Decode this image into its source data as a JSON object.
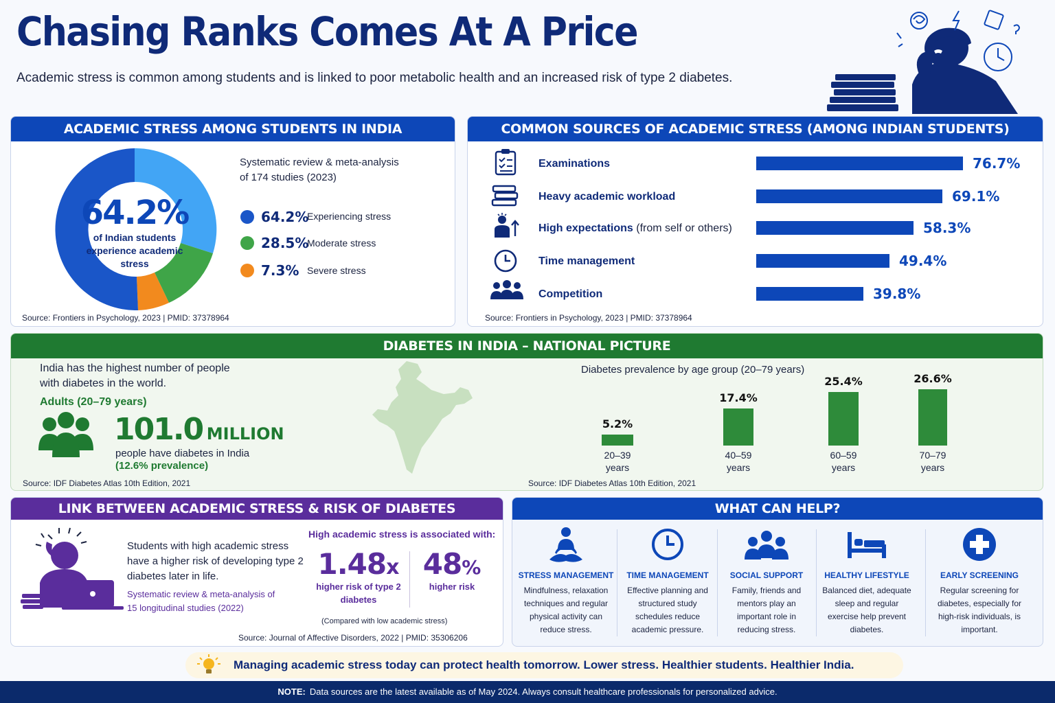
{
  "header": {
    "title": "Chasing Ranks Comes At A Price",
    "subtitle": "Academic stress is common among students and is linked to poor metabolic health and an increased risk of type 2 diabetes."
  },
  "stress_panel": {
    "heading": "ACADEMIC STRESS AMONG STUDENTS IN INDIA",
    "big_value": "64.2%",
    "big_caption_1": "of Indian students",
    "big_caption_2": "experience academic",
    "big_caption_3": "stress",
    "study_1": "Systematic review & meta-analysis",
    "study_2": "of 174 studies (2023)",
    "legend": [
      {
        "value": "64.2%",
        "label": "Experiencing stress",
        "color": "#1a56c8"
      },
      {
        "value": "28.5%",
        "label": "Moderate stress",
        "color": "#3fa548"
      },
      {
        "value": "7.3%",
        "label": "Severe stress",
        "color": "#f28a1e"
      }
    ],
    "source": "Source: Frontiers in Psychology, 2023  |  PMID: 37378964"
  },
  "sources_panel": {
    "heading": "COMMON SOURCES OF ACADEMIC STRESS (AMONG INDIAN STUDENTS)",
    "items": [
      {
        "label": "Examinations",
        "extra": "",
        "value": 76.7,
        "display": "76.7%",
        "icon": "clipboard-icon"
      },
      {
        "label": "Heavy academic workload",
        "extra": "",
        "value": 69.1,
        "display": "69.1%",
        "icon": "books-icon"
      },
      {
        "label": "High expectations",
        "extra": " (from self or others)",
        "value": 58.3,
        "display": "58.3%",
        "icon": "expectation-icon"
      },
      {
        "label": "Time management",
        "extra": "",
        "value": 49.4,
        "display": "49.4%",
        "icon": "clock-icon"
      },
      {
        "label": "Competition",
        "extra": "",
        "value": 39.8,
        "display": "39.8%",
        "icon": "group-icon"
      }
    ],
    "source": "Source: Frontiers in Psychology, 2023  |  PMID: 37378964"
  },
  "diabetes_panel": {
    "heading": "DIABETES IN INDIA – NATIONAL PICTURE",
    "intro_1": "India has the highest number of people",
    "intro_2": "with diabetes in the world.",
    "adults": "Adults (20–79 years)",
    "big_number": "101.0",
    "big_unit": "MILLION",
    "caption": "people have diabetes in India",
    "prevalence": "(12.6% prevalence)",
    "source_left": "Source: IDF Diabetes Atlas 10th Edition, 2021",
    "chart_title": "Diabetes prevalence by age group (20–79 years)",
    "source_right": "Source: IDF Diabetes Atlas 10th Edition, 2021"
  },
  "chart_data": {
    "type": "bar",
    "title": "Diabetes prevalence by age group (20–79 years)",
    "categories": [
      "20–39 years",
      "40–59 years",
      "60–59 years",
      "70–79 years"
    ],
    "values": [
      5.2,
      17.4,
      25.4,
      26.6
    ],
    "value_labels": [
      "5.2%",
      "17.4%",
      "25.4%",
      "26.6%"
    ],
    "category_lines": [
      [
        "20–39",
        "years"
      ],
      [
        "40–59",
        "years"
      ],
      [
        "60–59",
        "years"
      ],
      [
        "70–79",
        "years"
      ]
    ],
    "xlabel": "",
    "ylabel": "",
    "grid": false,
    "color": "#2e8b3a"
  },
  "link_panel": {
    "heading": "LINK BETWEEN ACADEMIC STRESS & RISK OF DIABETES",
    "text_1": "Students with high academic stress",
    "text_2": "have a higher risk of developing type 2",
    "text_3": "diabetes later in life.",
    "study_1": "Systematic review & meta-analysis of",
    "study_2": "15 longitudinal studies (2022)",
    "assoc": "High academic stress is associated with:",
    "stat1_value": "1.48",
    "stat1_unit": "x",
    "stat1_cap_1": "higher risk of type 2",
    "stat1_cap_2": "diabetes",
    "stat2_value": "48",
    "stat2_unit": "%",
    "stat2_cap": "higher risk",
    "compared": "(Compared with low academic stress)",
    "source": "Source: Journal of Affective Disorders, 2022  |  PMID: 35306206"
  },
  "help_panel": {
    "heading": "WHAT CAN HELP?",
    "items": [
      {
        "title": "STRESS MANAGEMENT",
        "desc": "Mindfulness, relaxation techniques and regular physical activity can reduce stress."
      },
      {
        "title": "TIME MANAGEMENT",
        "desc": "Effective planning and structured study schedules reduce academic pressure."
      },
      {
        "title": "SOCIAL SUPPORT",
        "desc": "Family, friends and mentors play an important role in reducing stress."
      },
      {
        "title": "HEALTHY LIFESTYLE",
        "desc": "Balanced diet, adequate sleep and regular exercise help prevent diabetes."
      },
      {
        "title": "EARLY SCREENING",
        "desc": "Regular screening for diabetes, especially for high-risk individuals, is important."
      }
    ]
  },
  "banner": {
    "text": "Managing academic stress today can protect health tomorrow. Lower stress. Healthier students. Healthier India."
  },
  "footer": {
    "note_label": "NOTE:",
    "note_text": "Data sources are the latest available as of May 2024. Always consult healthcare professionals for personalized advice."
  }
}
